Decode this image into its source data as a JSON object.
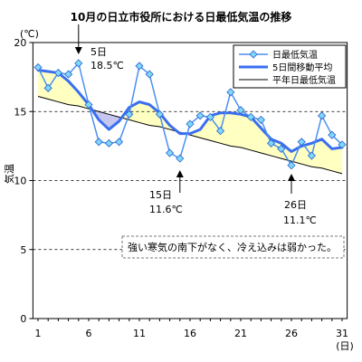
{
  "chart_data": {
    "type": "line",
    "title": "10月の日立市役所における日最低気温の推移",
    "ylabel": "気温",
    "yunit": "(℃)",
    "xunit": "(日)",
    "x": [
      1,
      2,
      3,
      4,
      5,
      6,
      7,
      8,
      9,
      10,
      11,
      12,
      13,
      14,
      15,
      16,
      17,
      18,
      19,
      20,
      21,
      22,
      23,
      24,
      25,
      26,
      27,
      28,
      29,
      30,
      31
    ],
    "xlim": [
      1,
      31
    ],
    "ylim": [
      0,
      20
    ],
    "xticks": [
      1,
      6,
      11,
      16,
      21,
      26,
      31
    ],
    "yticks": [
      0,
      5,
      10,
      15,
      20
    ],
    "grid": true,
    "legend": "top-right",
    "series": [
      {
        "name": "日最低気温",
        "color": "#4a90f0",
        "marker_color": "#7fd8f8",
        "values": [
          18.2,
          16.7,
          17.8,
          17.7,
          18.5,
          15.5,
          12.8,
          12.7,
          12.8,
          14.8,
          18.3,
          17.7,
          14.8,
          12.0,
          11.6,
          14.1,
          14.7,
          14.6,
          13.6,
          16.4,
          15.1,
          14.6,
          14.4,
          12.7,
          12.3,
          11.1,
          12.8,
          11.8,
          14.7,
          13.3,
          12.6
        ]
      },
      {
        "name": "5日間移動平均",
        "color": "#3b6ff0",
        "values": [
          18.0,
          17.9,
          17.8,
          17.2,
          16.4,
          15.5,
          14.4,
          13.7,
          14.3,
          15.3,
          15.7,
          15.5,
          14.9,
          14.0,
          13.4,
          13.4,
          13.7,
          14.7,
          14.9,
          14.9,
          14.8,
          14.6,
          13.8,
          13.0,
          12.7,
          12.1,
          12.5,
          12.7,
          13.0,
          12.3,
          12.4
        ]
      },
      {
        "name": "平年日最低気温",
        "color": "#000000",
        "values": [
          16.1,
          15.9,
          15.7,
          15.5,
          15.4,
          15.2,
          15.0,
          14.8,
          14.6,
          14.4,
          14.2,
          14.0,
          13.9,
          13.7,
          13.5,
          13.3,
          13.1,
          12.9,
          12.7,
          12.5,
          12.4,
          12.2,
          12.0,
          11.8,
          11.6,
          11.4,
          11.2,
          11.0,
          10.9,
          10.7,
          10.5
        ]
      }
    ],
    "fill_colors": {
      "above_normal": "#ffffc2",
      "below_normal": "#c6c6f0"
    },
    "annotations": [
      {
        "day": 5,
        "date_label": "5日",
        "value_label": "18.5℃"
      },
      {
        "day": 15,
        "date_label": "15日",
        "value_label": "11.6℃"
      },
      {
        "day": 26,
        "date_label": "26日",
        "value_label": "11.1℃"
      }
    ],
    "comment": "強い寒気の南下がなく、冷え込みは弱かった。"
  }
}
